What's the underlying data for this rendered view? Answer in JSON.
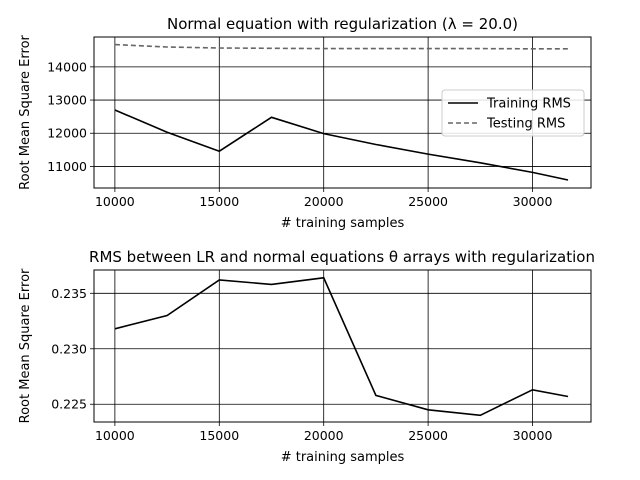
{
  "chart_data": [
    {
      "type": "line",
      "title": "Normal equation with regularization (λ = 20.0)",
      "xlabel": "# training samples",
      "ylabel": "Root Mean Square Error",
      "xlim": [
        9000,
        32800
      ],
      "ylim": [
        10350,
        14900
      ],
      "xticks": [
        10000,
        15000,
        20000,
        25000,
        30000
      ],
      "yticks": [
        11000,
        12000,
        13000,
        14000
      ],
      "grid": true,
      "legend_position": "center-right",
      "x": [
        10000,
        12500,
        15000,
        17500,
        20000,
        22500,
        25000,
        27500,
        30000,
        31700
      ],
      "series": [
        {
          "name": "Training RMS",
          "color": "#000000",
          "style": "solid",
          "values": [
            12700,
            12030,
            11460,
            12480,
            11990,
            11660,
            11370,
            11110,
            10820,
            10590
          ]
        },
        {
          "name": "Testing RMS",
          "color": "#666666",
          "style": "dashed",
          "values": [
            14670,
            14600,
            14570,
            14560,
            14550,
            14550,
            14550,
            14550,
            14545,
            14545
          ]
        }
      ]
    },
    {
      "type": "line",
      "title": "RMS between LR and normal equations θ arrays with regularization",
      "xlabel": "# training samples",
      "ylabel": "Root Mean Square Error",
      "xlim": [
        9000,
        32800
      ],
      "ylim": [
        0.2234,
        0.2371
      ],
      "xticks": [
        10000,
        15000,
        20000,
        25000,
        30000
      ],
      "yticks": [
        0.225,
        0.23,
        0.235
      ],
      "grid": true,
      "x": [
        10000,
        12500,
        15000,
        17500,
        20000,
        22500,
        25000,
        27500,
        30000,
        31700
      ],
      "series": [
        {
          "color": "#000000",
          "style": "solid",
          "values": [
            0.2318,
            0.233,
            0.2362,
            0.2358,
            0.2364,
            0.2258,
            0.2245,
            0.224,
            0.2263,
            0.2257
          ]
        }
      ]
    }
  ]
}
